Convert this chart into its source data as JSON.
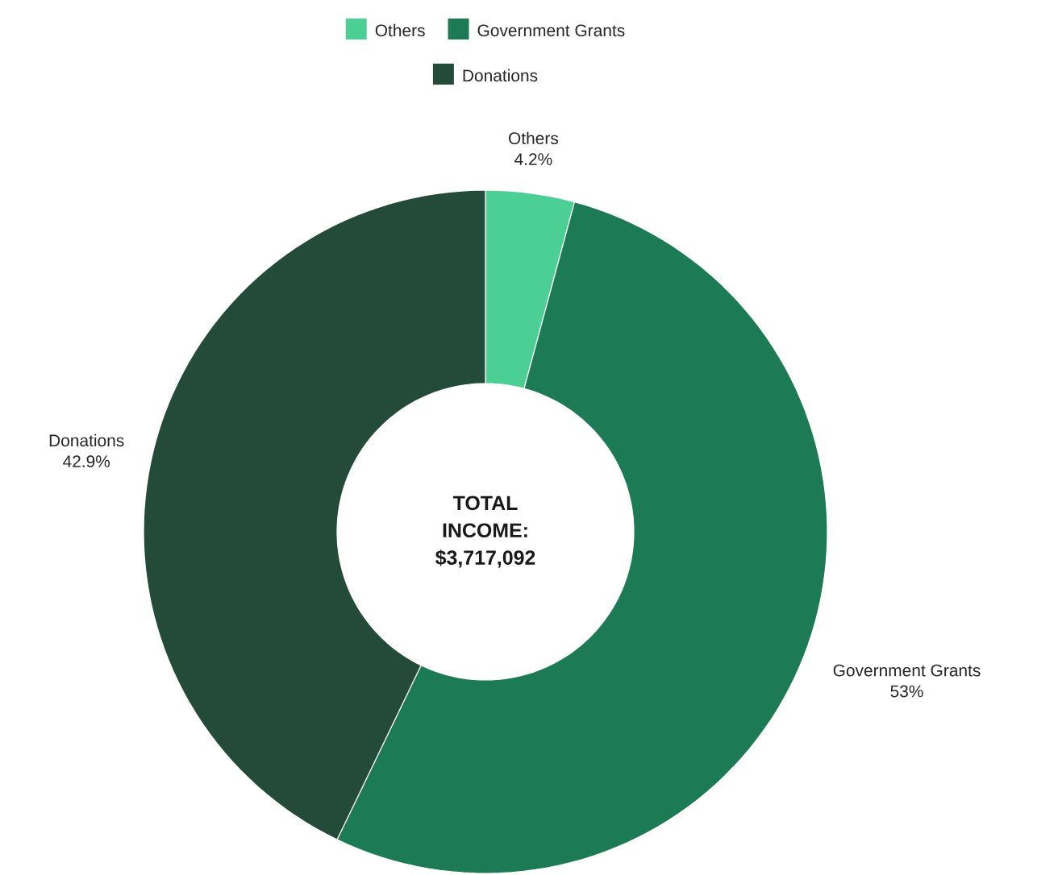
{
  "chart_data": {
    "type": "donut",
    "categories": [
      "Others",
      "Government Grants",
      "Donations"
    ],
    "values": [
      4.2,
      53,
      42.9
    ],
    "value_labels": [
      "4.2%",
      "53%",
      "42.9%"
    ],
    "colors": [
      "#4ccf94",
      "#1c7a55",
      "#244a3a"
    ],
    "legend": "top",
    "annotations": [
      "TOTAL INCOME: $3,717,092"
    ]
  }
}
